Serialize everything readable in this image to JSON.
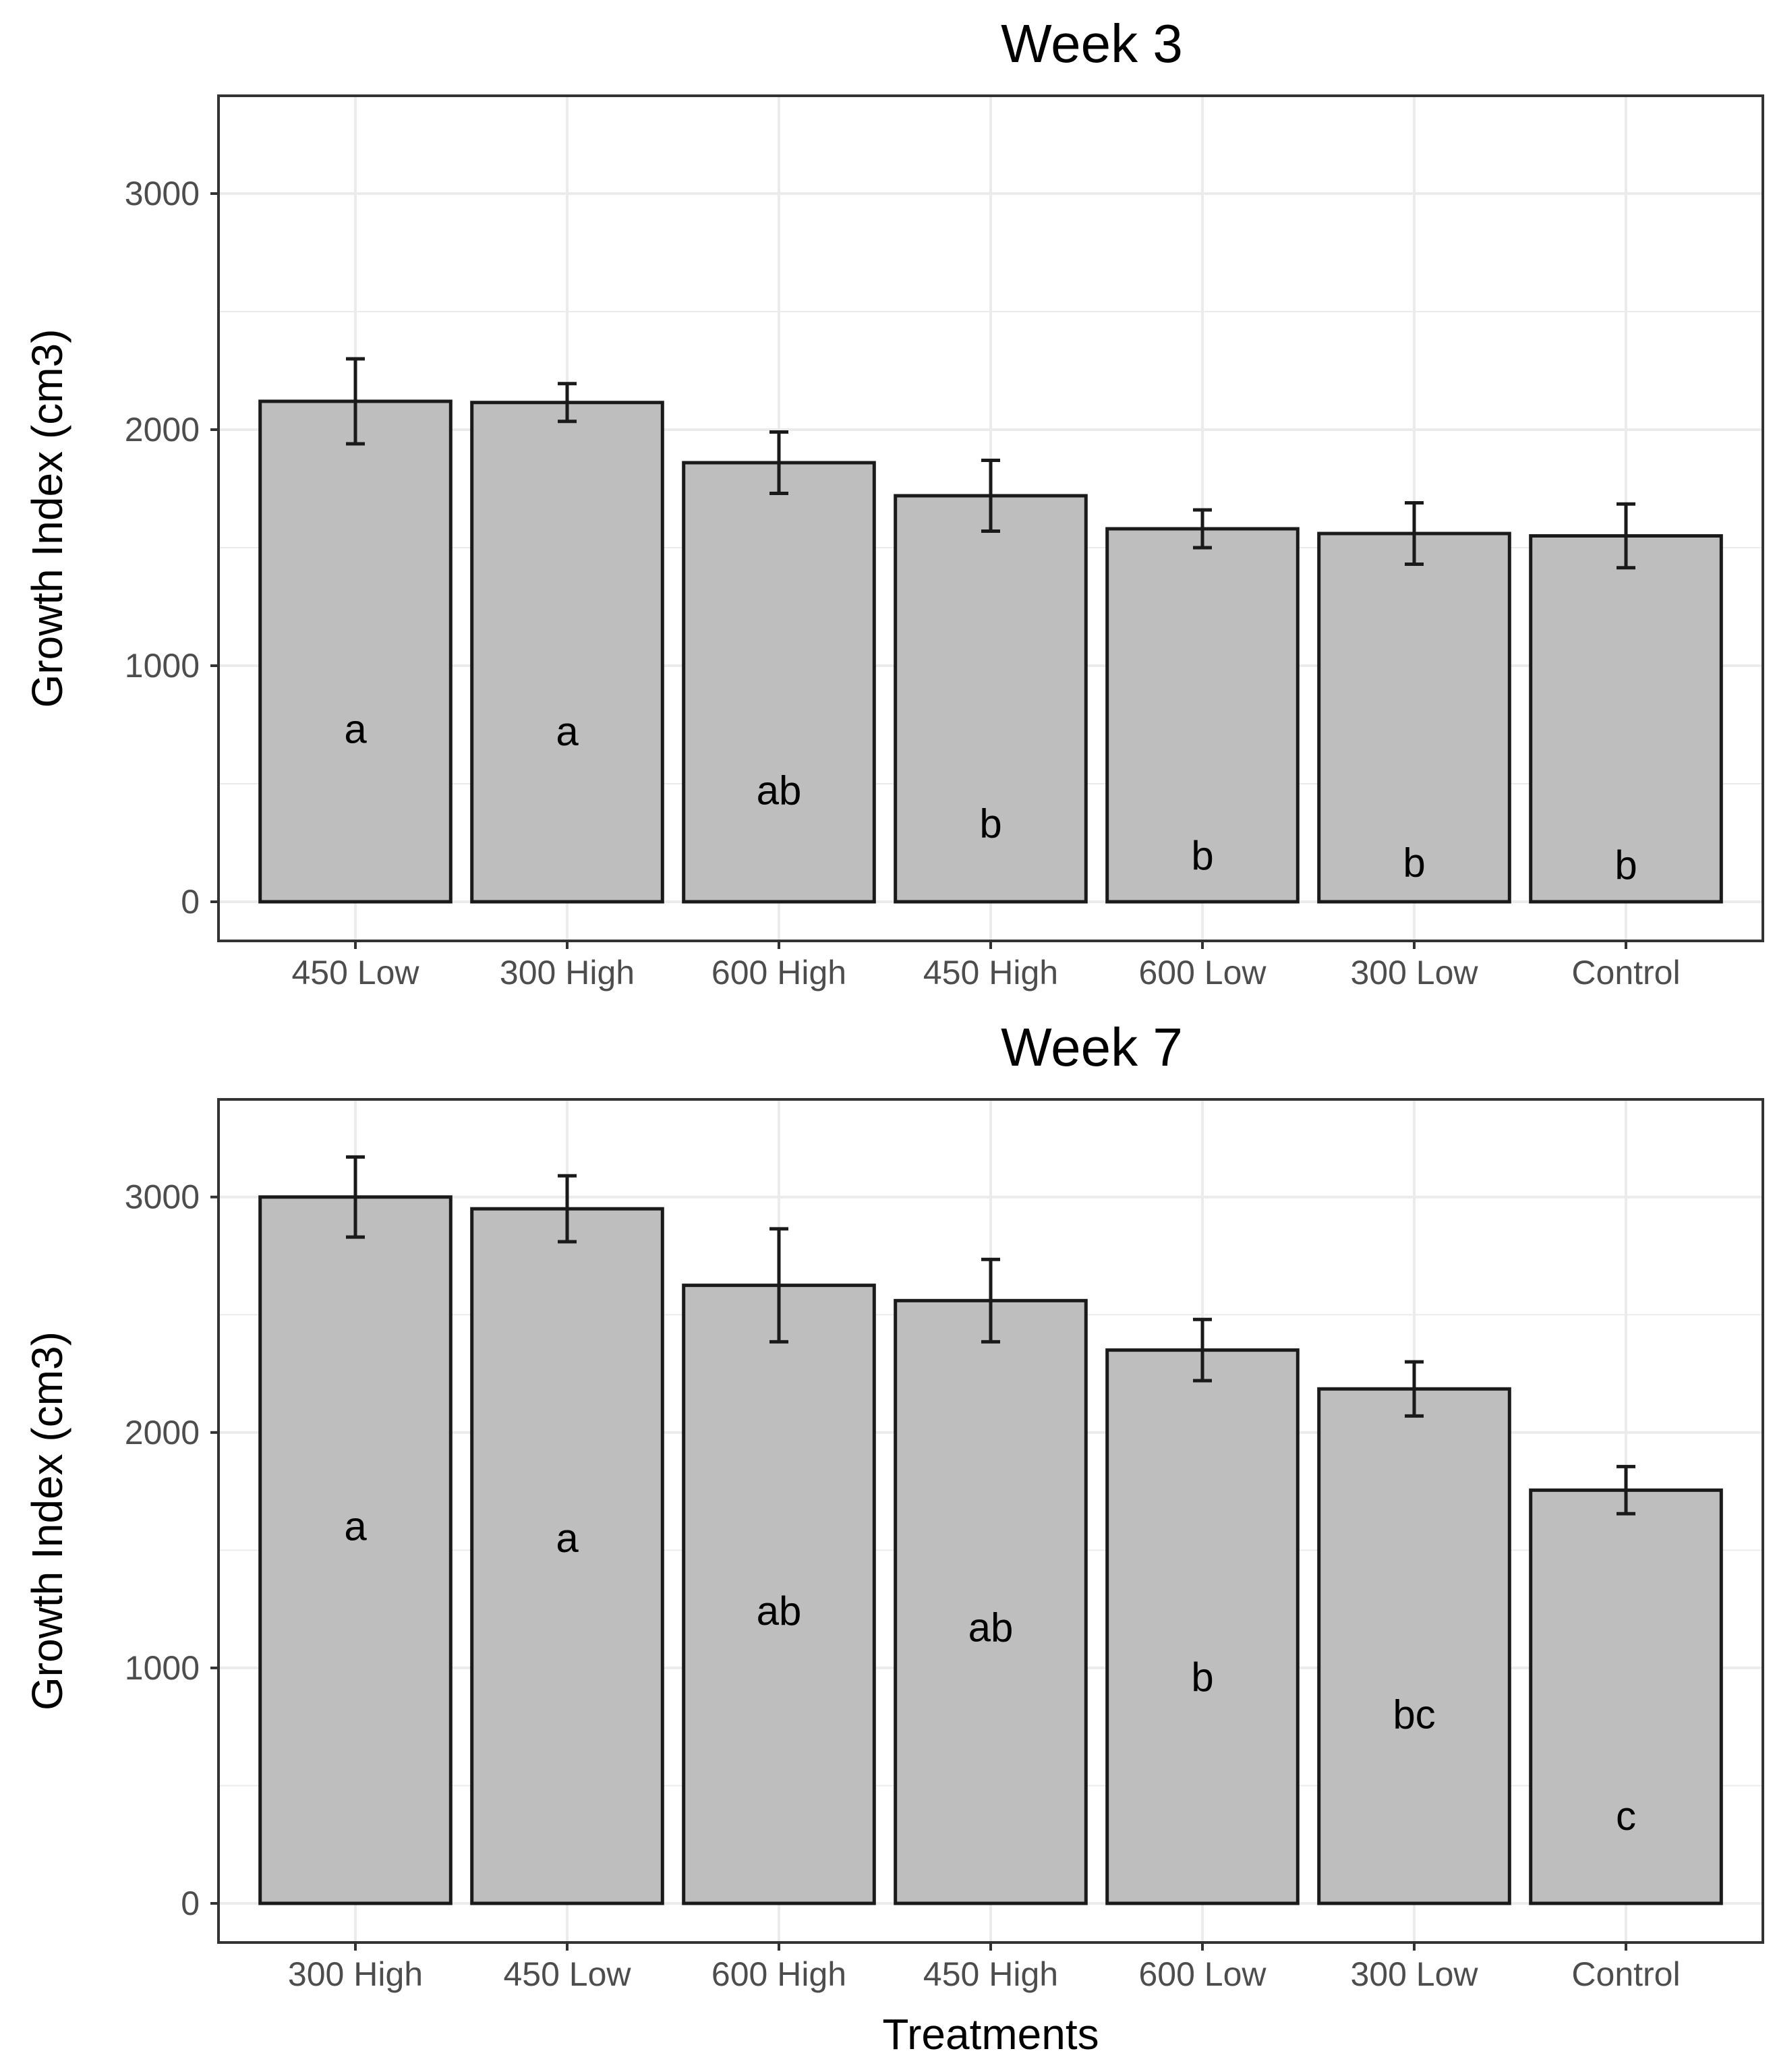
{
  "chart_data": [
    {
      "type": "bar",
      "title": "Week 3",
      "xlabel": "",
      "ylabel": "Growth Index (cm3)",
      "ylim": [
        0,
        3300
      ],
      "yticks": [
        0,
        1000,
        2000,
        3000
      ],
      "grid": true,
      "categories": [
        "450 Low",
        "300 High",
        "600 High",
        "450 High",
        "600 Low",
        "300 Low",
        "Control"
      ],
      "values": [
        2120,
        2115,
        1860,
        1720,
        1580,
        1560,
        1550
      ],
      "error": [
        180,
        80,
        130,
        150,
        80,
        130,
        135
      ],
      "letters": [
        "a",
        "a",
        "ab",
        "b",
        "b",
        "b",
        "b"
      ],
      "letter_y": [
        730,
        720,
        470,
        330,
        195,
        165,
        155
      ],
      "colors": {
        "bar": "#bebebe",
        "bar_edge": "#1a1a1a",
        "grid": "#ebebeb",
        "panel_border": "#333333"
      }
    },
    {
      "type": "bar",
      "title": "Week 7",
      "xlabel": "Treatments",
      "ylabel": "Growth Index (cm3)",
      "ylim": [
        0,
        3300
      ],
      "yticks": [
        0,
        1000,
        2000,
        3000
      ],
      "grid": true,
      "categories": [
        "300 High",
        "450 Low",
        "600 High",
        "450 High",
        "600 Low",
        "300 Low",
        "Control"
      ],
      "values": [
        3000,
        2950,
        2625,
        2560,
        2350,
        2185,
        1755
      ],
      "error": [
        170,
        140,
        240,
        175,
        130,
        115,
        100
      ],
      "letters": [
        "a",
        "a",
        "ab",
        "ab",
        "b",
        "bc",
        "c"
      ],
      "letter_y": [
        1600,
        1550,
        1240,
        1170,
        960,
        800,
        370
      ],
      "colors": {
        "bar": "#bebebe",
        "bar_edge": "#1a1a1a",
        "grid": "#ebebeb",
        "panel_border": "#333333"
      }
    }
  ]
}
